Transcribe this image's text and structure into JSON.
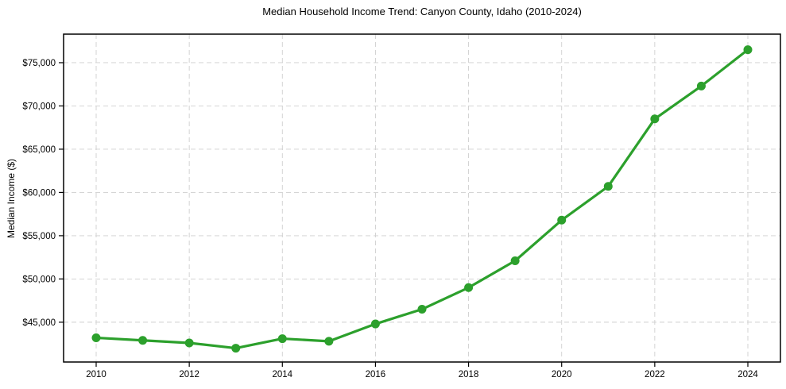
{
  "chart_data": {
    "type": "line",
    "title": "Median Household Income Trend: Canyon County, Idaho (2010-2024)",
    "xlabel": "",
    "ylabel": "Median Income ($)",
    "x": [
      2010,
      2011,
      2012,
      2013,
      2014,
      2015,
      2016,
      2017,
      2018,
      2019,
      2020,
      2021,
      2022,
      2023,
      2024
    ],
    "series": [
      {
        "name": "Median Household Income",
        "values": [
          43200,
          42900,
          42600,
          42000,
          43100,
          42800,
          44800,
          46500,
          49000,
          52100,
          56800,
          60700,
          68500,
          72300,
          76500
        ]
      }
    ],
    "xlim": [
      2009.3,
      2024.7
    ],
    "ylim": [
      40400,
      78300
    ],
    "xticks": {
      "values": [
        2010,
        2012,
        2014,
        2016,
        2018,
        2020,
        2022,
        2024
      ],
      "labels": [
        "2010",
        "2012",
        "2014",
        "2016",
        "2018",
        "2020",
        "2022",
        "2024"
      ]
    },
    "yticks": {
      "values": [
        45000,
        50000,
        55000,
        60000,
        65000,
        70000,
        75000
      ],
      "labels": [
        "$45,000",
        "$50,000",
        "$55,000",
        "$60,000",
        "$65,000",
        "$70,000",
        "$75,000"
      ]
    },
    "grid": true,
    "grid_style": "dashed",
    "legend": "none",
    "colors": {
      "line": "#2ca02c",
      "marker": "#2ca02c",
      "grid": "#cfcfcf",
      "spine": "#000000",
      "text": "#000000",
      "background": "#ffffff"
    }
  }
}
